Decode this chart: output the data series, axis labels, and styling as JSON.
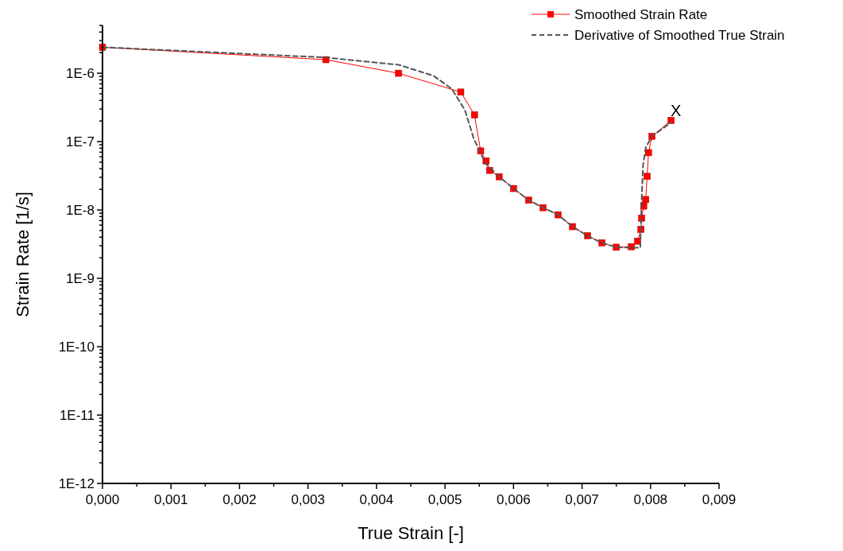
{
  "chart_data": {
    "type": "line",
    "xlabel": "True Strain [-]",
    "ylabel": "Strain Rate [1/s]",
    "log": "y",
    "xlim": [
      0,
      0.009
    ],
    "ylim": [
      1e-12,
      5e-06
    ],
    "xticks": [
      {
        "value": 0,
        "label": "0,000"
      },
      {
        "value": 0.0005,
        "label": null
      },
      {
        "value": 0.001,
        "label": "0,001"
      },
      {
        "value": 0.0015,
        "label": null
      },
      {
        "value": 0.002,
        "label": "0,002"
      },
      {
        "value": 0.0025,
        "label": null
      },
      {
        "value": 0.003,
        "label": "0,003"
      },
      {
        "value": 0.0035,
        "label": null
      },
      {
        "value": 0.004,
        "label": "0,004"
      },
      {
        "value": 0.0045,
        "label": null
      },
      {
        "value": 0.005,
        "label": "0,005"
      },
      {
        "value": 0.0055,
        "label": null
      },
      {
        "value": 0.006,
        "label": "0,006"
      },
      {
        "value": 0.0065,
        "label": null
      },
      {
        "value": 0.007,
        "label": "0,007"
      },
      {
        "value": 0.0075,
        "label": null
      },
      {
        "value": 0.008,
        "label": "0,008"
      },
      {
        "value": 0.0085,
        "label": null
      },
      {
        "value": 0.009,
        "label": "0,009"
      }
    ],
    "yticks": [
      {
        "value": 1e-12,
        "label": "1E-12"
      },
      {
        "value": 2e-12,
        "label": null
      },
      {
        "value": 3e-12,
        "label": null
      },
      {
        "value": 4e-12,
        "label": null
      },
      {
        "value": 5e-12,
        "label": null
      },
      {
        "value": 6e-12,
        "label": null
      },
      {
        "value": 7e-12,
        "label": null
      },
      {
        "value": 8e-12,
        "label": null
      },
      {
        "value": 9e-12,
        "label": null
      },
      {
        "value": 1e-11,
        "label": "1E-11"
      },
      {
        "value": 2e-11,
        "label": null
      },
      {
        "value": 3e-11,
        "label": null
      },
      {
        "value": 4e-11,
        "label": null
      },
      {
        "value": 5e-11,
        "label": null
      },
      {
        "value": 6e-11,
        "label": null
      },
      {
        "value": 7e-11,
        "label": null
      },
      {
        "value": 8e-11,
        "label": null
      },
      {
        "value": 9e-11,
        "label": null
      },
      {
        "value": 1e-10,
        "label": "1E-10"
      },
      {
        "value": 2e-10,
        "label": null
      },
      {
        "value": 3e-10,
        "label": null
      },
      {
        "value": 4e-10,
        "label": null
      },
      {
        "value": 5e-10,
        "label": null
      },
      {
        "value": 6e-10,
        "label": null
      },
      {
        "value": 7e-10,
        "label": null
      },
      {
        "value": 8e-10,
        "label": null
      },
      {
        "value": 9e-10,
        "label": null
      },
      {
        "value": 1e-09,
        "label": "1E-9"
      },
      {
        "value": 2e-09,
        "label": null
      },
      {
        "value": 3e-09,
        "label": null
      },
      {
        "value": 4e-09,
        "label": null
      },
      {
        "value": 5e-09,
        "label": null
      },
      {
        "value": 6e-09,
        "label": null
      },
      {
        "value": 7e-09,
        "label": null
      },
      {
        "value": 8e-09,
        "label": null
      },
      {
        "value": 9e-09,
        "label": null
      },
      {
        "value": 1e-08,
        "label": "1E-8"
      },
      {
        "value": 2e-08,
        "label": null
      },
      {
        "value": 3e-08,
        "label": null
      },
      {
        "value": 4e-08,
        "label": null
      },
      {
        "value": 5e-08,
        "label": null
      },
      {
        "value": 6e-08,
        "label": null
      },
      {
        "value": 7e-08,
        "label": null
      },
      {
        "value": 8e-08,
        "label": null
      },
      {
        "value": 9e-08,
        "label": null
      },
      {
        "value": 1e-07,
        "label": "1E-7"
      },
      {
        "value": 2e-07,
        "label": null
      },
      {
        "value": 3e-07,
        "label": null
      },
      {
        "value": 4e-07,
        "label": null
      },
      {
        "value": 5e-07,
        "label": null
      },
      {
        "value": 6e-07,
        "label": null
      },
      {
        "value": 7e-07,
        "label": null
      },
      {
        "value": 8e-07,
        "label": null
      },
      {
        "value": 9e-07,
        "label": null
      },
      {
        "value": 1e-06,
        "label": "1E-6"
      },
      {
        "value": 2e-06,
        "label": null
      },
      {
        "value": 3e-06,
        "label": null
      },
      {
        "value": 4e-06,
        "label": null
      },
      {
        "value": 5e-06,
        "label": null
      }
    ],
    "legend": "top right",
    "grid": false,
    "annotations": [
      {
        "text": "X",
        "x": 0.0083,
        "y": 2.04e-07
      }
    ],
    "series": [
      {
        "name": "Smoothed Strain Rate",
        "color": "#ff0000",
        "marker": "square",
        "line_style": "solid",
        "x": [
          0,
          0.00326,
          0.00432,
          0.00523,
          0.00543,
          0.00552,
          0.0056,
          0.00565,
          0.00579,
          0.006,
          0.00622,
          0.00643,
          0.00665,
          0.00686,
          0.00708,
          0.00729,
          0.0075,
          0.00772,
          0.00781,
          0.00786,
          0.00787,
          0.0079,
          0.00793,
          0.00795,
          0.00797,
          0.00802,
          0.0083
        ],
        "values": [
          2.4e-06,
          1.58e-06,
          1e-06,
          5.3e-07,
          2.46e-07,
          7.3e-08,
          5.2e-08,
          3.8e-08,
          3.06e-08,
          2.06e-08,
          1.39e-08,
          1.08e-08,
          8.5e-09,
          5.7e-09,
          4.2e-09,
          3.3e-09,
          2.85e-09,
          2.9e-09,
          3.5e-09,
          5.2e-09,
          7.6e-09,
          1.14e-08,
          1.42e-08,
          3.1e-08,
          6.9e-08,
          1.19e-07,
          2.04e-07
        ]
      },
      {
        "name": "Derivative of Smoothed True Strain",
        "color": "#555555",
        "marker": "none",
        "line_style": "dashed",
        "x": [
          0,
          0.00326,
          0.00432,
          0.00483,
          0.0051,
          0.00529,
          0.00542,
          0.00559,
          0.00579,
          0.006,
          0.00622,
          0.00643,
          0.00665,
          0.00686,
          0.00708,
          0.00729,
          0.0075,
          0.00772,
          0.00785,
          0.00787,
          0.00789,
          0.00793,
          0.00802,
          0.0083
        ],
        "values": [
          2.4e-06,
          1.7e-06,
          1.33e-06,
          9.2e-07,
          5.9e-07,
          2.9e-07,
          1.1e-07,
          4.8e-08,
          3.06e-08,
          2.06e-08,
          1.39e-08,
          1.08e-08,
          8.5e-09,
          5.7e-09,
          4.2e-09,
          3.3e-09,
          2.85e-09,
          2.8e-09,
          2.8e-09,
          1.39e-08,
          4.5e-08,
          8.2e-08,
          1.2e-07,
          1.9e-07
        ]
      }
    ]
  }
}
